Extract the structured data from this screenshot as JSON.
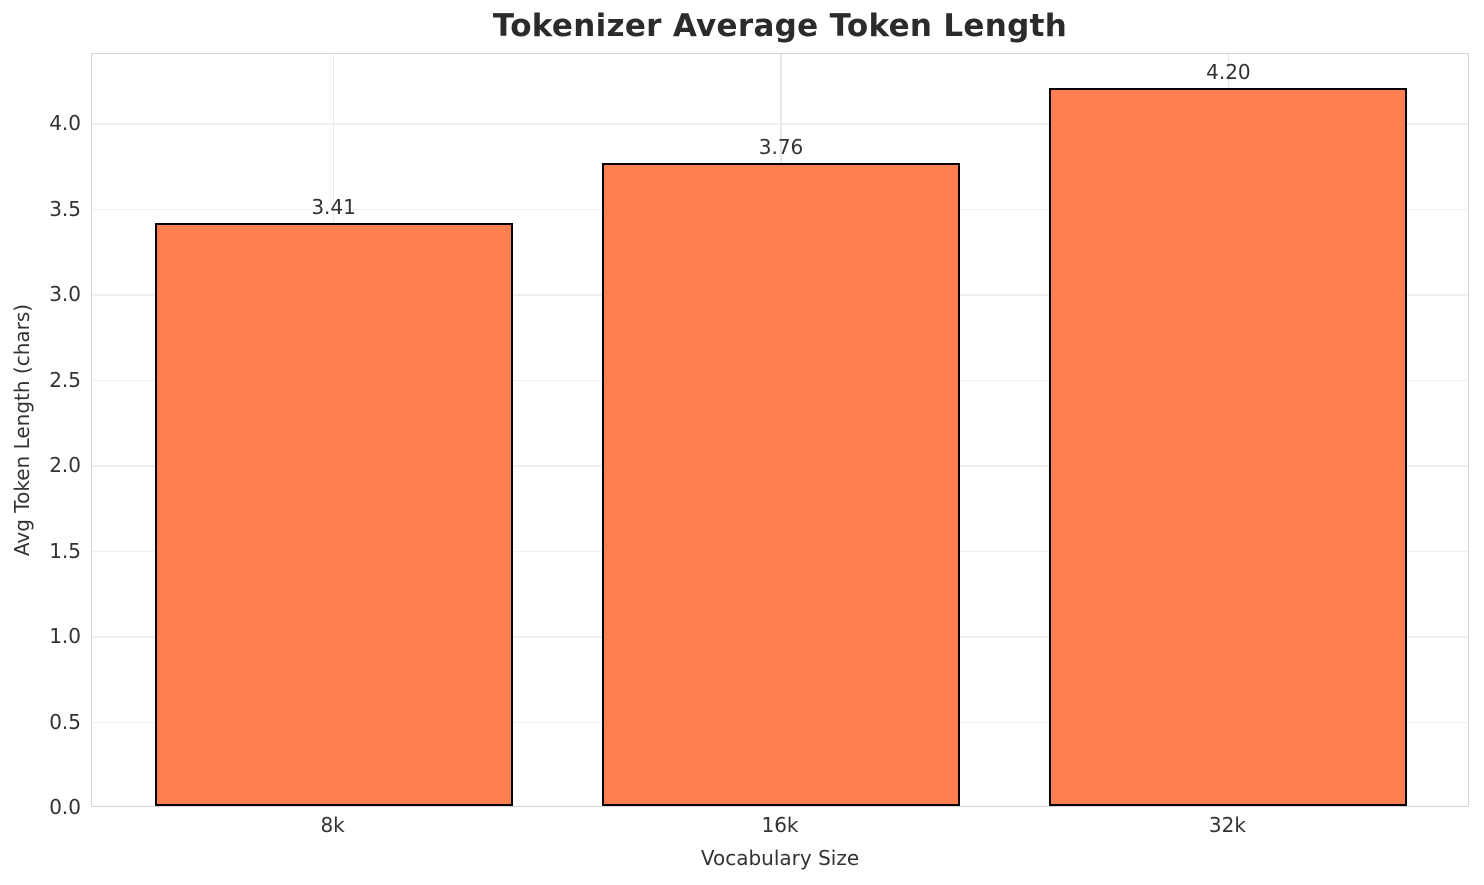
{
  "chart_data": {
    "type": "bar",
    "title": "Tokenizer Average Token Length",
    "xlabel": "Vocabulary Size",
    "ylabel": "Avg Token Length (chars)",
    "categories": [
      "8k",
      "16k",
      "32k"
    ],
    "values": [
      3.41,
      3.76,
      4.2
    ],
    "value_labels": [
      "3.41",
      "3.76",
      "4.20"
    ],
    "ylim": [
      0,
      4.41
    ],
    "yticks": [
      0.0,
      0.5,
      1.0,
      1.5,
      2.0,
      2.5,
      3.0,
      3.5,
      4.0
    ],
    "ytick_labels": [
      "0.0",
      "0.5",
      "1.0",
      "1.5",
      "2.0",
      "2.5",
      "3.0",
      "3.5",
      "4.0"
    ],
    "grid": true,
    "legend": false,
    "bar_color": "#FF7F50",
    "bar_edge_color": "#000000",
    "background_color": "#ffffff",
    "grid_color": "#efefef",
    "spine_color": "#d4d4d4",
    "text_color": "#333333",
    "title_color": "#2b2b2b"
  }
}
